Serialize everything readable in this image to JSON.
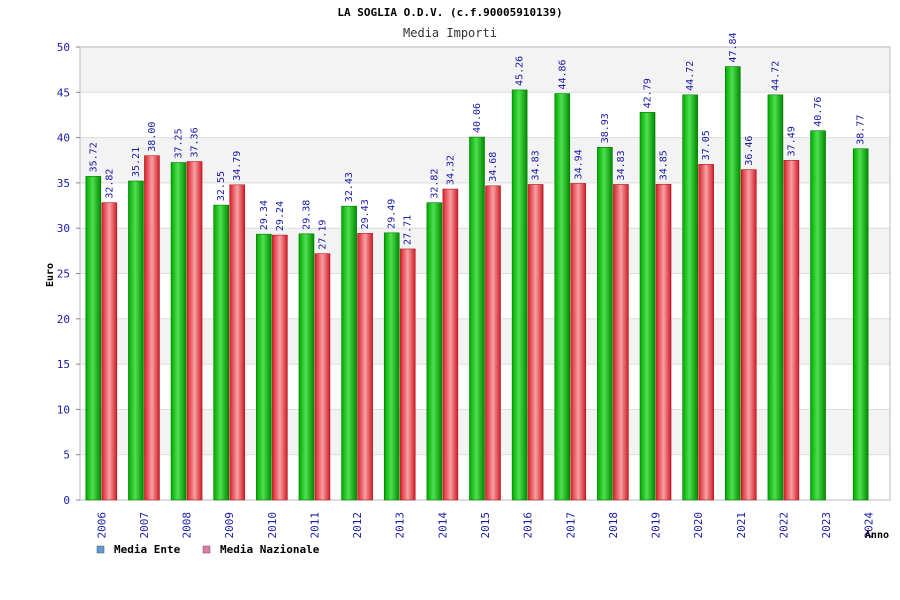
{
  "chart_data": {
    "type": "bar",
    "title": "LA SOGLIA O.D.V. (c.f.90005910139)",
    "subtitle": "Media Importi",
    "ylabel": "Euro",
    "xlabel": "Anno",
    "ylim": [
      0,
      50
    ],
    "yticks": [
      0,
      5,
      10,
      15,
      20,
      25,
      30,
      35,
      40,
      45,
      50
    ],
    "categories": [
      "2006",
      "2007",
      "2008",
      "2009",
      "2010",
      "2011",
      "2012",
      "2013",
      "2014",
      "2015",
      "2016",
      "2017",
      "2018",
      "2019",
      "2020",
      "2021",
      "2022",
      "2023",
      "2024"
    ],
    "series": [
      {
        "name": "Media Ente",
        "color": "#00b000",
        "values": [
          35.72,
          35.21,
          37.25,
          32.55,
          29.34,
          29.38,
          32.43,
          29.49,
          32.82,
          40.06,
          45.26,
          44.86,
          38.93,
          42.79,
          44.72,
          47.84,
          44.72,
          40.76,
          38.77
        ],
        "labels": [
          "35.72",
          "35.21",
          "37.25",
          "32.55",
          "29.34",
          "29.38",
          "32.43",
          "29.49",
          "32.82",
          "40.06",
          "45.26",
          "44.86",
          "38.93",
          "42.79",
          "44.72",
          "47.84",
          "44.72",
          "40.76",
          "38.77"
        ]
      },
      {
        "name": "Media Nazionale",
        "color": "#e8323c",
        "values": [
          32.82,
          38.0,
          37.36,
          34.79,
          29.24,
          27.19,
          29.43,
          27.71,
          34.32,
          34.68,
          34.83,
          34.94,
          34.83,
          34.85,
          37.05,
          36.46,
          37.49,
          null,
          null
        ],
        "labels": [
          "32.82",
          "38.00",
          "37.36",
          "34.79",
          "29.24",
          "27.19",
          "29.43",
          "27.71",
          "34.32",
          "34.68",
          "34.83",
          "34.94",
          "34.83",
          "34.85",
          "37.05",
          "36.46",
          "37.49",
          null,
          null
        ]
      }
    ],
    "legend": [
      {
        "label": "Media Ente",
        "color": "#5b9bd5"
      },
      {
        "label": "Media Nazionale",
        "color": "#e07aa8"
      }
    ],
    "legend_position": "bottom-left",
    "grid": true
  }
}
